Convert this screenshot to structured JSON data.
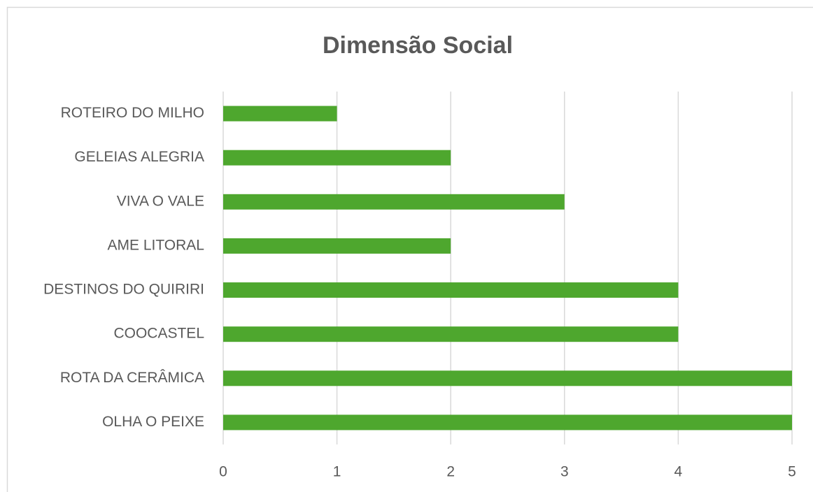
{
  "chart_data": {
    "type": "hbar",
    "title": "Dimensão Social",
    "categories": [
      "ROTEIRO DO MILHO",
      "GELEIAS ALEGRIA",
      "VIVA O VALE",
      "AME LITORAL",
      "DESTINOS DO QUIRIRI",
      "COOCASTEL",
      "ROTA DA CERÂMICA",
      "OLHA O PEIXE"
    ],
    "values": [
      1,
      2,
      3,
      2,
      4,
      4,
      5,
      5
    ],
    "color": "#4ea72e",
    "xlim": [
      0,
      5
    ],
    "xticks": [
      0,
      1,
      2,
      3,
      4,
      5
    ],
    "grid": true
  }
}
